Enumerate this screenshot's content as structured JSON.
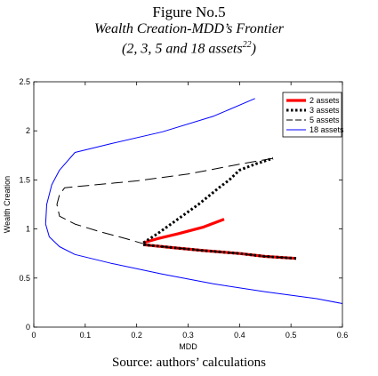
{
  "figure": {
    "number": "Figure No.5",
    "title": "Wealth Creation-MDD’s Frontier",
    "subtitle": "(2, 3, 5 and 18 assets",
    "footnote_ref": "22",
    "subtitle_end": ")",
    "source": "Source: authors’ calculations"
  },
  "chart_data": {
    "type": "line",
    "xlabel": "MDD",
    "ylabel": "Wealth Creation",
    "xlim": [
      0,
      0.6
    ],
    "ylim": [
      0,
      2.5
    ],
    "xticks": [
      "0",
      "0.1",
      "0.2",
      "0.3",
      "0.4",
      "0.5",
      "0.6"
    ],
    "yticks": [
      "0",
      "0.5",
      "1",
      "1.5",
      "2",
      "2.5"
    ],
    "grid": false,
    "legend_position": "top-right",
    "series": [
      {
        "name": "2 assets",
        "color": "#ff0000",
        "style": "solid-thick",
        "segments": [
          [
            [
              0.213,
              0.86
            ],
            [
              0.24,
              0.9
            ],
            [
              0.28,
              0.95
            ],
            [
              0.33,
              1.02
            ],
            [
              0.37,
              1.1
            ]
          ],
          [
            [
              0.213,
              0.84
            ],
            [
              0.27,
              0.81
            ],
            [
              0.33,
              0.78
            ],
            [
              0.4,
              0.75
            ],
            [
              0.45,
              0.72
            ],
            [
              0.51,
              0.7
            ]
          ]
        ]
      },
      {
        "name": "3 assets",
        "color": "#000000",
        "style": "dotted-thick",
        "segments": [
          [
            [
              0.213,
              0.86
            ],
            [
              0.24,
              0.95
            ],
            [
              0.28,
              1.1
            ],
            [
              0.32,
              1.25
            ],
            [
              0.36,
              1.42
            ],
            [
              0.38,
              1.5
            ],
            [
              0.4,
              1.6
            ],
            [
              0.43,
              1.66
            ],
            [
              0.465,
              1.72
            ]
          ],
          [
            [
              0.213,
              0.84
            ],
            [
              0.27,
              0.81
            ],
            [
              0.33,
              0.78
            ],
            [
              0.4,
              0.75
            ],
            [
              0.45,
              0.72
            ],
            [
              0.51,
              0.7
            ]
          ]
        ]
      },
      {
        "name": "5 assets",
        "color": "#000000",
        "style": "dashed",
        "segments": [
          [
            [
              0.465,
              1.72
            ],
            [
              0.4,
              1.66
            ],
            [
              0.3,
              1.56
            ],
            [
              0.2,
              1.49
            ],
            [
              0.1,
              1.44
            ],
            [
              0.06,
              1.42
            ],
            [
              0.05,
              1.35
            ],
            [
              0.045,
              1.25
            ],
            [
              0.05,
              1.13
            ],
            [
              0.08,
              1.05
            ],
            [
              0.13,
              0.97
            ],
            [
              0.18,
              0.9
            ],
            [
              0.213,
              0.85
            ]
          ],
          [
            [
              0.213,
              0.84
            ],
            [
              0.27,
              0.81
            ],
            [
              0.33,
              0.78
            ],
            [
              0.4,
              0.75
            ],
            [
              0.45,
              0.72
            ],
            [
              0.51,
              0.7
            ]
          ]
        ]
      },
      {
        "name": "18 assets",
        "color": "#0000ff",
        "style": "solid-thin",
        "segments": [
          [
            [
              0.43,
              2.33
            ],
            [
              0.35,
              2.15
            ],
            [
              0.25,
              1.99
            ],
            [
              0.15,
              1.87
            ],
            [
              0.08,
              1.78
            ],
            [
              0.05,
              1.6
            ],
            [
              0.035,
              1.45
            ],
            [
              0.025,
              1.25
            ],
            [
              0.023,
              1.05
            ],
            [
              0.03,
              0.92
            ],
            [
              0.05,
              0.82
            ],
            [
              0.08,
              0.74
            ],
            [
              0.15,
              0.65
            ],
            [
              0.25,
              0.54
            ],
            [
              0.35,
              0.44
            ],
            [
              0.45,
              0.36
            ],
            [
              0.55,
              0.29
            ],
            [
              0.6,
              0.24
            ]
          ]
        ]
      }
    ]
  }
}
